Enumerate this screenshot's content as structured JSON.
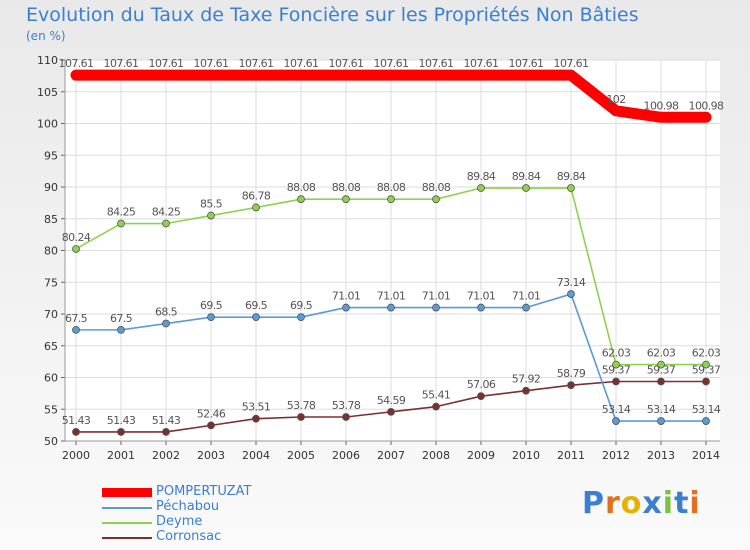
{
  "header": {
    "title": "Evolution du Taux de Taxe Foncière sur les Propriétés Non Bâties",
    "unit": "(en %)"
  },
  "logo": {
    "text": "Proxiti",
    "colors": [
      "#3a7fd0",
      "#e07020",
      "#e8b000",
      "#3a7fd0",
      "#7cc040",
      "#3a7fd0",
      "#e07020"
    ]
  },
  "colors": {
    "title": "#3a7fd0",
    "background": "#f2f2f2"
  },
  "chart_data": {
    "type": "line",
    "x": [
      "2000",
      "2001",
      "2002",
      "2003",
      "2004",
      "2005",
      "2006",
      "2007",
      "2008",
      "2009",
      "2010",
      "2011",
      "2012",
      "2013",
      "2014"
    ],
    "yticks": [
      "50",
      "55",
      "60",
      "65",
      "70",
      "75",
      "80",
      "85",
      "90",
      "95",
      "100",
      "105",
      "110"
    ],
    "ylim": [
      50,
      110
    ],
    "grid": true,
    "legend_position": "bottom-left",
    "series": [
      {
        "name": "POMPERTUZAT",
        "color": "#ff0000",
        "values": [
          107.61,
          107.61,
          107.61,
          107.61,
          107.61,
          107.61,
          107.61,
          107.61,
          107.61,
          107.61,
          107.61,
          107.61,
          102,
          100.98,
          100.98
        ],
        "labels": [
          "107.61",
          "107.61",
          "107.61",
          "107.61",
          "107.61",
          "107.61",
          "107.61",
          "107.61",
          "107.61",
          "107.61",
          "107.61",
          "107.61",
          "102",
          "100.98",
          "100.98"
        ]
      },
      {
        "name": "Péchabou",
        "color": "#5b9bd5",
        "values": [
          67.5,
          67.5,
          68.5,
          69.5,
          69.5,
          69.5,
          71.01,
          71.01,
          71.01,
          71.01,
          71.01,
          73.14,
          53.14,
          53.14,
          53.14
        ],
        "labels": [
          "67.5",
          "67.5",
          "68.5",
          "69.5",
          "69.5",
          "69.5",
          "71.01",
          "71.01",
          "71.01",
          "71.01",
          "71.01",
          "73.14",
          "53.14",
          "53.14",
          "53.14"
        ]
      },
      {
        "name": "Deyme",
        "color": "#8fd14f",
        "values": [
          80.24,
          84.25,
          84.25,
          85.5,
          86.78,
          88.08,
          88.08,
          88.08,
          88.08,
          89.84,
          89.84,
          89.84,
          62.03,
          62.03,
          62.03
        ],
        "labels": [
          "80.24",
          "84.25",
          "84.25",
          "85.5",
          "86.78",
          "88.08",
          "88.08",
          "88.08",
          "88.08",
          "89.84",
          "89.84",
          "89.84",
          "62.03",
          "62.03",
          "62.03"
        ]
      },
      {
        "name": "Corronsac",
        "color": "#7a3030",
        "values": [
          51.43,
          51.43,
          51.43,
          52.46,
          53.51,
          53.78,
          53.78,
          54.59,
          55.41,
          57.06,
          57.92,
          58.79,
          59.37,
          59.37,
          59.37
        ],
        "labels": [
          "51.43",
          "51.43",
          "51.43",
          "52.46",
          "53.51",
          "53.78",
          "53.78",
          "54.59",
          "55.41",
          "57.06",
          "57.92",
          "58.79",
          "59.37",
          "59.37",
          "59.37"
        ]
      }
    ]
  }
}
